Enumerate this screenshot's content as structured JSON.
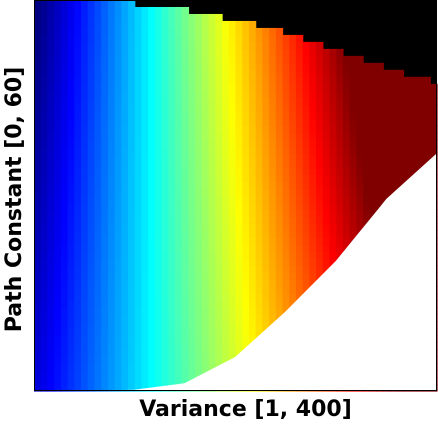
{
  "chart_data": {
    "type": "heatmap",
    "title": "",
    "xlabel": "Variance [1, 400]",
    "ylabel": "Path Constant [0, 60]",
    "x_range": [
      1,
      400
    ],
    "y_range": [
      0,
      60
    ],
    "colormap": "jet",
    "background_color": "#000000",
    "undefined_color": "#ffffff",
    "grid": false,
    "legend": "none",
    "region": {
      "note_upper": "black region above the colored surface",
      "note_lower": "white region below the colored surface",
      "top_boundary": [
        [
          1,
          60
        ],
        [
          50,
          60
        ],
        [
          100,
          59.5
        ],
        [
          150,
          58.6
        ],
        [
          200,
          57.0
        ],
        [
          250,
          55.0
        ],
        [
          300,
          52.4
        ],
        [
          350,
          49.5
        ],
        [
          400,
          47.4
        ]
      ],
      "bottom_boundary": [
        [
          1,
          0
        ],
        [
          50,
          0
        ],
        [
          100,
          0.2
        ],
        [
          150,
          1.2
        ],
        [
          200,
          5.2
        ],
        [
          250,
          12.2
        ],
        [
          300,
          20.0
        ],
        [
          350,
          29.5
        ],
        [
          400,
          36.5
        ]
      ]
    }
  }
}
